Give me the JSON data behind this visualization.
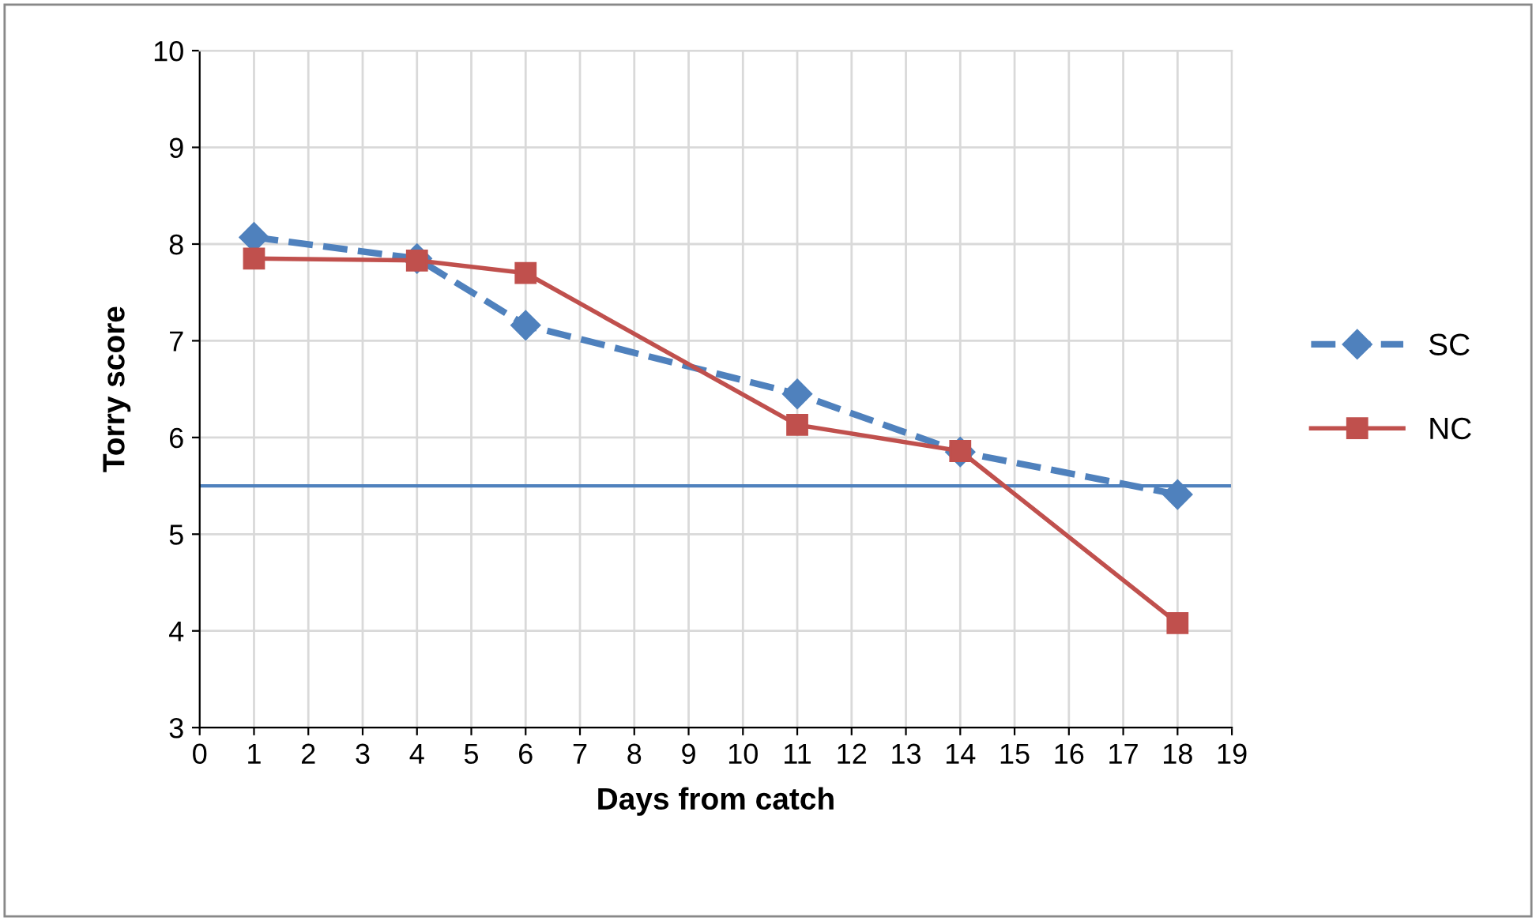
{
  "chart_data": {
    "type": "line",
    "xlabel": "Days from catch",
    "ylabel": "Torry score",
    "x": [
      1,
      4,
      6,
      11,
      14,
      18
    ],
    "series": [
      {
        "name": "SC",
        "color": "#4f81bd",
        "values": [
          8.07,
          7.85,
          7.16,
          6.45,
          5.85,
          5.41
        ],
        "marker": "diamond",
        "line_style": "dashed"
      },
      {
        "name": "NC",
        "color": "#c0504d",
        "values": [
          7.85,
          7.83,
          7.7,
          6.13,
          5.86,
          4.08
        ],
        "marker": "square",
        "line_style": "solid"
      }
    ],
    "xlim": [
      0,
      19
    ],
    "xticks": [
      0,
      1,
      2,
      3,
      4,
      5,
      6,
      7,
      8,
      9,
      10,
      11,
      12,
      13,
      14,
      15,
      16,
      17,
      18,
      19
    ],
    "ylim": [
      3,
      10
    ],
    "yticks": [
      3,
      4,
      5,
      6,
      7,
      8,
      9,
      10
    ],
    "ref_lines": [
      {
        "axis": "y",
        "value": 5.5,
        "color": "#4f81bd",
        "line_style": "solid"
      }
    ],
    "grid": true,
    "legend": "right"
  }
}
